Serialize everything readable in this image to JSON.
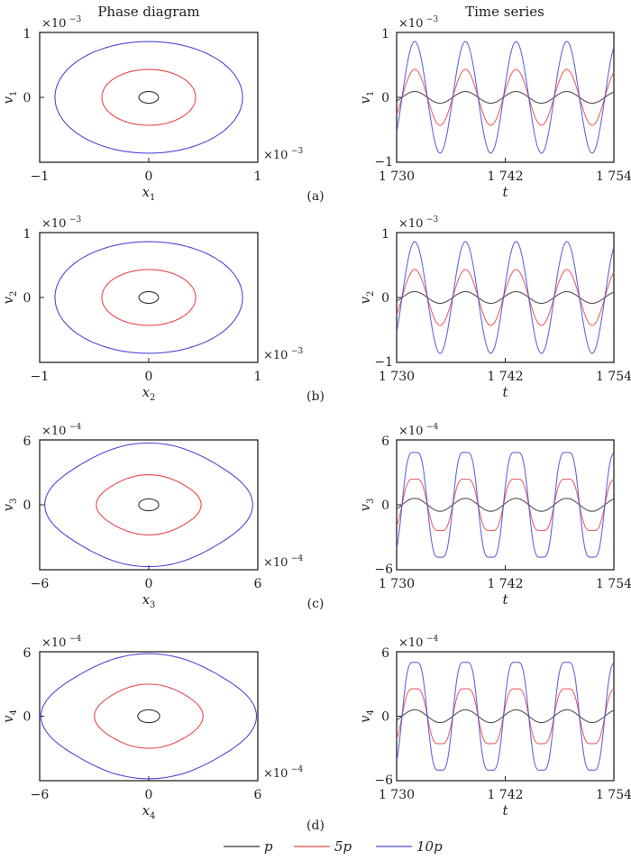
{
  "headers": {
    "left": "Phase diagram",
    "right": "Time series"
  },
  "legend": [
    {
      "label": "p",
      "color": "#333333"
    },
    {
      "label": "5p",
      "color": "#e8474a"
    },
    {
      "label": "10p",
      "color": "#4a4ad8"
    }
  ],
  "panels": [
    {
      "tag": "(a)",
      "exp": "−3",
      "phase": {
        "xlabel": "x1",
        "ylabel": "v1",
        "xticks": [
          "−1",
          "0",
          "1"
        ],
        "yticks": [
          "1",
          "0"
        ]
      },
      "time": {
        "ylabel": "v1",
        "yticks": [
          "1",
          "0",
          "−1"
        ],
        "xticks": [
          "1 730",
          "1 742",
          "1 754"
        ],
        "xlabel": "t"
      }
    },
    {
      "tag": "(b)",
      "exp": "−3",
      "phase": {
        "xlabel": "x2",
        "ylabel": "v2",
        "xticks": [
          "−1",
          "0",
          "1"
        ],
        "yticks": [
          "1",
          "0"
        ]
      },
      "time": {
        "ylabel": "v2",
        "yticks": [
          "1",
          "0",
          "−1"
        ],
        "xticks": [
          "1 730",
          "1 742",
          "1 754"
        ],
        "xlabel": "t"
      }
    },
    {
      "tag": "(c)",
      "exp": "−4",
      "phase": {
        "xlabel": "x3",
        "ylabel": "v3",
        "xticks": [
          "−6",
          "0",
          "6"
        ],
        "yticks": [
          "6",
          "0"
        ]
      },
      "time": {
        "ylabel": "v3",
        "yticks": [
          "6",
          "0",
          "−6"
        ],
        "xticks": [
          "1 730",
          "1 742",
          "1 754"
        ],
        "xlabel": "t"
      }
    },
    {
      "tag": "(d)",
      "exp": "−4",
      "phase": {
        "xlabel": "x4",
        "ylabel": "v4",
        "xticks": [
          "−6",
          "0",
          "6"
        ],
        "yticks": [
          "6",
          "0"
        ]
      },
      "time": {
        "ylabel": "v4",
        "yticks": [
          "6",
          "0",
          "−6"
        ],
        "xticks": [
          "1 730",
          "1 742",
          "1 754"
        ],
        "xlabel": "t"
      }
    }
  ],
  "chart_data": [
    {
      "type": "line",
      "panel": "(a) phase",
      "title": "Phase diagram",
      "xlabel": "x1 (×10^-3)",
      "ylabel": "v1 (×10^-3)",
      "xlim": [
        -1,
        1
      ],
      "ylim": [
        -1,
        1
      ],
      "series": [
        {
          "name": "p",
          "shape": "ellipse",
          "x_amp": 0.09,
          "y_amp": 0.09
        },
        {
          "name": "5p",
          "shape": "ellipse",
          "x_amp": 0.43,
          "y_amp": 0.43
        },
        {
          "name": "10p",
          "shape": "ellipse",
          "x_amp": 0.86,
          "y_amp": 0.86
        }
      ]
    },
    {
      "type": "line",
      "panel": "(a) time",
      "title": "Time series",
      "xlabel": "t",
      "ylabel": "v1 (×10^-3)",
      "xlim": [
        1730,
        1754
      ],
      "ylim": [
        -1,
        1
      ],
      "period": 5.6,
      "series": [
        {
          "name": "p",
          "amplitude": 0.09
        },
        {
          "name": "5p",
          "amplitude": 0.43
        },
        {
          "name": "10p",
          "amplitude": 0.86
        }
      ]
    },
    {
      "type": "line",
      "panel": "(b) phase",
      "xlabel": "x2 (×10^-3)",
      "ylabel": "v2 (×10^-3)",
      "xlim": [
        -1,
        1
      ],
      "ylim": [
        -1,
        1
      ],
      "series": [
        {
          "name": "p",
          "x_amp": 0.09,
          "y_amp": 0.09
        },
        {
          "name": "5p",
          "x_amp": 0.43,
          "y_amp": 0.43
        },
        {
          "name": "10p",
          "x_amp": 0.86,
          "y_amp": 0.86
        }
      ]
    },
    {
      "type": "line",
      "panel": "(b) time",
      "xlabel": "t",
      "ylabel": "v2 (×10^-3)",
      "xlim": [
        1730,
        1754
      ],
      "ylim": [
        -1,
        1
      ],
      "period": 5.6,
      "series": [
        {
          "name": "p",
          "amplitude": 0.09
        },
        {
          "name": "5p",
          "amplitude": 0.43
        },
        {
          "name": "10p",
          "amplitude": 0.86
        }
      ]
    },
    {
      "type": "line",
      "panel": "(c) phase",
      "xlabel": "x3 (×10^-4)",
      "ylabel": "v3 (×10^-4)",
      "xlim": [
        -6,
        6
      ],
      "ylim": [
        -6,
        6
      ],
      "series": [
        {
          "name": "p",
          "x_amp": 0.55,
          "y_amp": 0.55
        },
        {
          "name": "5p",
          "x_amp": 2.8,
          "y_amp": 2.7
        },
        {
          "name": "10p",
          "x_amp": 5.5,
          "y_amp": 5.5
        }
      ]
    },
    {
      "type": "line",
      "panel": "(c) time",
      "xlabel": "t",
      "ylabel": "v3 (×10^-4)",
      "xlim": [
        1730,
        1754
      ],
      "ylim": [
        -6,
        6
      ],
      "period": 5.6,
      "series": [
        {
          "name": "p",
          "amplitude": 0.6
        },
        {
          "name": "5p",
          "amplitude": 2.7
        },
        {
          "name": "10p",
          "amplitude": 5.5
        }
      ]
    },
    {
      "type": "line",
      "panel": "(d) phase",
      "xlabel": "x4 (×10^-4)",
      "ylabel": "v4 (×10^-4)",
      "xlim": [
        -6,
        6
      ],
      "ylim": [
        -6,
        6
      ],
      "series": [
        {
          "name": "p",
          "x_amp": 0.6,
          "y_amp": 0.6
        },
        {
          "name": "5p",
          "x_amp": 2.9,
          "y_amp": 2.9
        },
        {
          "name": "10p",
          "x_amp": 5.7,
          "y_amp": 5.6
        }
      ]
    },
    {
      "type": "line",
      "panel": "(d) time",
      "xlabel": "t",
      "ylabel": "v4 (×10^-4)",
      "xlim": [
        1730,
        1754
      ],
      "ylim": [
        -6,
        6
      ],
      "period": 5.6,
      "series": [
        {
          "name": "p",
          "amplitude": 0.6
        },
        {
          "name": "5p",
          "amplitude": 2.9
        },
        {
          "name": "10p",
          "amplitude": 5.7
        }
      ]
    }
  ]
}
